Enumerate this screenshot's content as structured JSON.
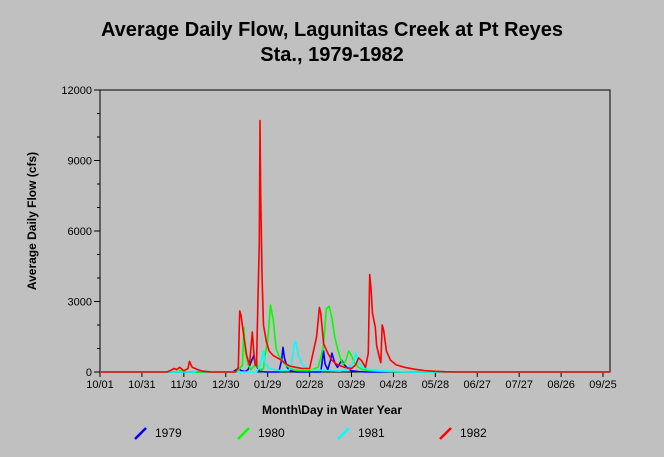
{
  "chart_data": {
    "type": "line",
    "title_lines": [
      "Average Daily Flow, Lagunitas Creek at Pt Reyes",
      "Sta., 1979-1982"
    ],
    "xlabel": "Month\\Day in Water Year",
    "ylabel": "Average Daily Flow (cfs)",
    "ylim": [
      0,
      12000
    ],
    "y_ticks": [
      "0",
      "3000",
      "6000",
      "9000",
      "12000"
    ],
    "x_ticks": [
      "10/01",
      "10/31",
      "11/30",
      "12/30",
      "01/29",
      "02/28",
      "03/29",
      "04/28",
      "05/28",
      "06/27",
      "07/27",
      "08/26",
      "09/25"
    ],
    "x_domain_days": [
      0,
      365
    ],
    "grid": false,
    "legend_placement": "bottom",
    "series": [
      {
        "name": "1979",
        "color": "#0000ff",
        "points": [
          [
            0,
            0
          ],
          [
            60,
            0
          ],
          [
            95,
            0
          ],
          [
            97,
            80
          ],
          [
            99,
            150
          ],
          [
            101,
            60
          ],
          [
            104,
            20
          ],
          [
            106,
            100
          ],
          [
            108,
            400
          ],
          [
            110,
            700
          ],
          [
            111,
            400
          ],
          [
            113,
            150
          ],
          [
            114,
            40
          ],
          [
            118,
            0
          ],
          [
            128,
            0
          ],
          [
            130,
            500
          ],
          [
            131,
            1050
          ],
          [
            132,
            600
          ],
          [
            134,
            200
          ],
          [
            136,
            60
          ],
          [
            140,
            0
          ],
          [
            158,
            0
          ],
          [
            160,
            900
          ],
          [
            161,
            350
          ],
          [
            163,
            100
          ],
          [
            165,
            500
          ],
          [
            166,
            800
          ],
          [
            168,
            400
          ],
          [
            170,
            200
          ],
          [
            173,
            500
          ],
          [
            175,
            300
          ],
          [
            178,
            120
          ],
          [
            180,
            50
          ],
          [
            185,
            20
          ],
          [
            190,
            0
          ],
          [
            365,
            0
          ]
        ]
      },
      {
        "name": "1980",
        "color": "#00ff00",
        "points": [
          [
            0,
            0
          ],
          [
            55,
            0
          ],
          [
            58,
            60
          ],
          [
            60,
            20
          ],
          [
            63,
            0
          ],
          [
            98,
            0
          ],
          [
            102,
            300
          ],
          [
            103,
            1900
          ],
          [
            104,
            900
          ],
          [
            106,
            300
          ],
          [
            108,
            100
          ],
          [
            111,
            300
          ],
          [
            112,
            550
          ],
          [
            113,
            200
          ],
          [
            115,
            80
          ],
          [
            117,
            150
          ],
          [
            118,
            700
          ],
          [
            120,
            1300
          ],
          [
            122,
            2850
          ],
          [
            124,
            2200
          ],
          [
            126,
            1000
          ],
          [
            128,
            700
          ],
          [
            130,
            500
          ],
          [
            133,
            300
          ],
          [
            136,
            150
          ],
          [
            140,
            80
          ],
          [
            148,
            50
          ],
          [
            152,
            100
          ],
          [
            156,
            200
          ],
          [
            158,
            600
          ],
          [
            160,
            1200
          ],
          [
            162,
            2700
          ],
          [
            164,
            2800
          ],
          [
            166,
            2300
          ],
          [
            168,
            1500
          ],
          [
            170,
            1000
          ],
          [
            172,
            600
          ],
          [
            174,
            300
          ],
          [
            176,
            500
          ],
          [
            178,
            900
          ],
          [
            180,
            700
          ],
          [
            182,
            400
          ],
          [
            185,
            200
          ],
          [
            188,
            100
          ],
          [
            192,
            60
          ],
          [
            198,
            40
          ],
          [
            205,
            20
          ],
          [
            215,
            0
          ],
          [
            365,
            0
          ]
        ]
      },
      {
        "name": "1981",
        "color": "#00ffff",
        "points": [
          [
            0,
            0
          ],
          [
            68,
            0
          ],
          [
            70,
            120
          ],
          [
            72,
            60
          ],
          [
            76,
            20
          ],
          [
            85,
            0
          ],
          [
            112,
            0
          ],
          [
            114,
            200
          ],
          [
            116,
            600
          ],
          [
            117,
            900
          ],
          [
            118,
            400
          ],
          [
            121,
            150
          ],
          [
            125,
            100
          ],
          [
            129,
            60
          ],
          [
            135,
            50
          ],
          [
            137,
            300
          ],
          [
            139,
            1200
          ],
          [
            140,
            1300
          ],
          [
            142,
            700
          ],
          [
            145,
            300
          ],
          [
            148,
            150
          ],
          [
            152,
            100
          ],
          [
            157,
            80
          ],
          [
            160,
            60
          ],
          [
            166,
            50
          ],
          [
            172,
            40
          ],
          [
            178,
            100
          ],
          [
            182,
            500
          ],
          [
            183,
            800
          ],
          [
            185,
            400
          ],
          [
            188,
            200
          ],
          [
            192,
            100
          ],
          [
            200,
            60
          ],
          [
            210,
            30
          ],
          [
            220,
            0
          ],
          [
            365,
            0
          ]
        ]
      },
      {
        "name": "1982",
        "color": "#ff0000",
        "points": [
          [
            0,
            0
          ],
          [
            48,
            0
          ],
          [
            51,
            80
          ],
          [
            53,
            150
          ],
          [
            55,
            100
          ],
          [
            57,
            200
          ],
          [
            60,
            50
          ],
          [
            63,
            150
          ],
          [
            64,
            450
          ],
          [
            66,
            200
          ],
          [
            70,
            100
          ],
          [
            73,
            40
          ],
          [
            80,
            0
          ],
          [
            97,
            0
          ],
          [
            99,
            200
          ],
          [
            100,
            2600
          ],
          [
            101,
            2400
          ],
          [
            103,
            1500
          ],
          [
            105,
            700
          ],
          [
            107,
            300
          ],
          [
            108,
            1000
          ],
          [
            109,
            1700
          ],
          [
            110,
            900
          ],
          [
            111,
            300
          ],
          [
            112,
            250
          ],
          [
            113,
            3000
          ],
          [
            114,
            5500
          ],
          [
            114.5,
            10700
          ],
          [
            115,
            7500
          ],
          [
            116,
            4000
          ],
          [
            117,
            2000
          ],
          [
            119,
            1300
          ],
          [
            121,
            900
          ],
          [
            124,
            700
          ],
          [
            127,
            600
          ],
          [
            130,
            500
          ],
          [
            133,
            350
          ],
          [
            136,
            250
          ],
          [
            140,
            200
          ],
          [
            145,
            150
          ],
          [
            150,
            150
          ],
          [
            155,
            1500
          ],
          [
            157,
            2750
          ],
          [
            158,
            2500
          ],
          [
            160,
            1200
          ],
          [
            163,
            800
          ],
          [
            166,
            500
          ],
          [
            170,
            300
          ],
          [
            175,
            200
          ],
          [
            180,
            150
          ],
          [
            183,
            300
          ],
          [
            185,
            600
          ],
          [
            187,
            500
          ],
          [
            189,
            300
          ],
          [
            190,
            200
          ],
          [
            192,
            800
          ],
          [
            193,
            4150
          ],
          [
            194,
            3500
          ],
          [
            195,
            2500
          ],
          [
            197,
            1900
          ],
          [
            198,
            1100
          ],
          [
            200,
            600
          ],
          [
            201,
            400
          ],
          [
            202,
            2000
          ],
          [
            203,
            1800
          ],
          [
            205,
            900
          ],
          [
            208,
            500
          ],
          [
            212,
            300
          ],
          [
            218,
            200
          ],
          [
            225,
            120
          ],
          [
            232,
            60
          ],
          [
            240,
            30
          ],
          [
            248,
            10
          ],
          [
            255,
            0
          ],
          [
            365,
            0
          ]
        ]
      }
    ]
  }
}
